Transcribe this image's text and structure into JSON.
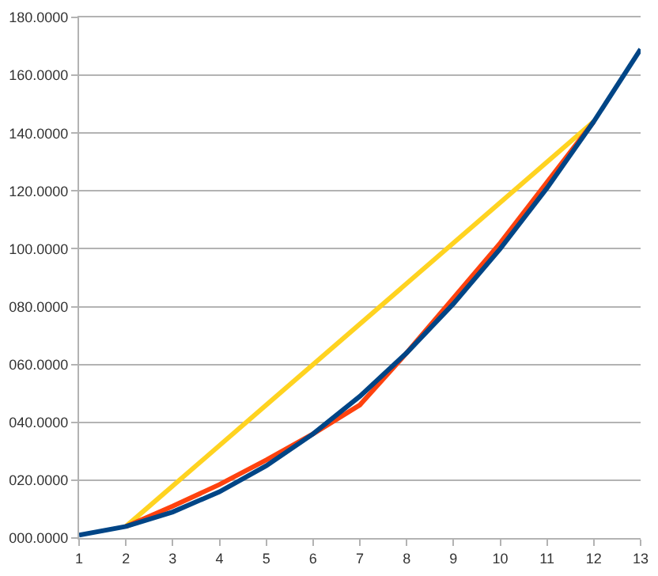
{
  "chart_data": {
    "type": "line",
    "xlim": [
      1,
      13
    ],
    "xticks": [
      1,
      2,
      3,
      4,
      5,
      6,
      7,
      8,
      9,
      10,
      11,
      12,
      13
    ],
    "ylim": [
      0,
      180
    ],
    "yticks": [
      {
        "value": 0,
        "label": "000.0000"
      },
      {
        "value": 20,
        "label": "020.0000"
      },
      {
        "value": 40,
        "label": "040.0000"
      },
      {
        "value": 60,
        "label": "060.0000"
      },
      {
        "value": 80,
        "label": "080.0000"
      },
      {
        "value": 100,
        "label": "100.0000"
      },
      {
        "value": 120,
        "label": "120.0000"
      },
      {
        "value": 140,
        "label": "140.0000"
      },
      {
        "value": 160,
        "label": "160.0000"
      },
      {
        "value": 180,
        "label": "180.0000"
      }
    ],
    "grid": "y",
    "marker": "none",
    "line_style": "solid",
    "series": [
      {
        "color": "#ffd320",
        "x": [
          2,
          12
        ],
        "values": [
          4,
          144
        ]
      },
      {
        "color": "#ff420e",
        "x": [
          2,
          3,
          4,
          5,
          6,
          7,
          8,
          9,
          10,
          11,
          12
        ],
        "values": [
          4,
          11,
          18.5,
          27,
          36,
          46,
          64,
          83,
          102,
          123,
          144
        ]
      },
      {
        "color": "#004586",
        "x": [
          1,
          2,
          3,
          4,
          5,
          6,
          7,
          8,
          9,
          10,
          11,
          12,
          13
        ],
        "values": [
          1,
          4,
          9,
          16,
          25,
          36,
          49,
          64,
          81,
          100,
          121,
          144,
          169
        ]
      }
    ]
  }
}
